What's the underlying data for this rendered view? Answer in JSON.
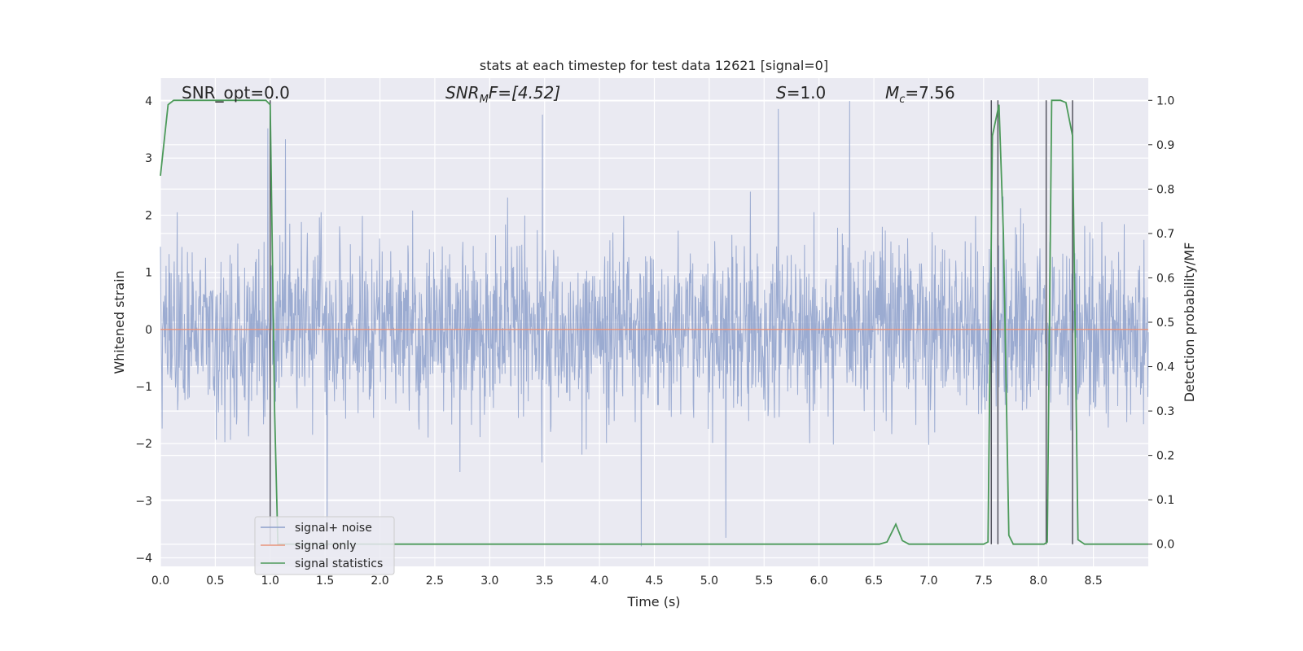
{
  "chart_data": {
    "type": "line",
    "title": "stats at each timestep for test data 12621 [signal=0]",
    "xlabel": "Time (s)",
    "ylabel": "Whitened strain",
    "y2label": "Detection probability/MF",
    "xlim": [
      0,
      9
    ],
    "ylim": [
      -4.15,
      4.4
    ],
    "y2lim": [
      -0.05,
      1.05
    ],
    "xticks": [
      "0.0",
      "0.5",
      "1.0",
      "1.5",
      "2.0",
      "2.5",
      "3.0",
      "3.5",
      "4.0",
      "4.5",
      "5.0",
      "5.5",
      "6.0",
      "6.5",
      "7.0",
      "7.5",
      "8.0",
      "8.5"
    ],
    "yticks": [
      "4",
      "3",
      "2",
      "1",
      "0",
      "−1",
      "−2",
      "−3",
      "−4"
    ],
    "y2ticks": [
      "1.0",
      "0.9",
      "0.8",
      "0.7",
      "0.6",
      "0.5",
      "0.4",
      "0.3",
      "0.2",
      "0.1",
      "0.0"
    ],
    "grid": true,
    "legend_position": "lower-left",
    "annotations": {
      "snr_opt": "SNR_opt=0.0",
      "snr_mf_prefix": "SNR",
      "snr_mf_sub": "M",
      "snr_mf_suffix": "F=[4.52]",
      "s_prefix": "S",
      "s_suffix": "=1.0",
      "mc_prefix": "M",
      "mc_sub": "c",
      "mc_suffix": "=7.56"
    },
    "series": [
      {
        "name": "signal+ noise",
        "color": "#8da0cb",
        "noise_std": 0.75,
        "noise_max": 4.0,
        "noise_min": -3.8,
        "notable_peaks": [
          [
            0.98,
            3.52
          ],
          [
            1.14,
            3.33
          ],
          [
            3.48,
            3.76
          ],
          [
            5.63,
            3.86
          ],
          [
            6.28,
            4.0
          ],
          [
            4.38,
            -3.8
          ],
          [
            5.15,
            -3.65
          ],
          [
            1.52,
            -3.55
          ]
        ]
      },
      {
        "name": "signal only",
        "color": "#e8937a",
        "values": [
          [
            0,
            0
          ],
          [
            9,
            0
          ]
        ]
      },
      {
        "name": "signal statistics",
        "color": "#4c9a5a",
        "axis": "right",
        "values": [
          [
            0,
            0.83
          ],
          [
            0.07,
            0.99
          ],
          [
            0.12,
            1.0
          ],
          [
            0.5,
            1.0
          ],
          [
            0.96,
            1.0
          ],
          [
            1.0,
            0.99
          ],
          [
            1.04,
            0.3
          ],
          [
            1.07,
            0.0
          ],
          [
            6.55,
            0.0
          ],
          [
            6.62,
            0.005
          ],
          [
            6.7,
            0.045
          ],
          [
            6.76,
            0.008
          ],
          [
            6.82,
            0.0
          ],
          [
            7.5,
            0.0
          ],
          [
            7.54,
            0.005
          ],
          [
            7.58,
            0.92
          ],
          [
            7.64,
            0.99
          ],
          [
            7.68,
            0.7
          ],
          [
            7.73,
            0.02
          ],
          [
            7.77,
            0.0
          ],
          [
            8.05,
            0.0
          ],
          [
            8.08,
            0.005
          ],
          [
            8.12,
            1.0
          ],
          [
            8.2,
            1.0
          ],
          [
            8.25,
            0.995
          ],
          [
            8.31,
            0.92
          ],
          [
            8.36,
            0.01
          ],
          [
            8.42,
            0.0
          ],
          [
            9,
            0.0
          ]
        ]
      }
    ],
    "vertical_lines": [
      [
        1.0,
        0.0,
        1.0
      ],
      [
        7.57,
        0.0,
        1.0
      ],
      [
        7.63,
        0.0,
        1.0
      ],
      [
        8.07,
        0.0,
        1.0
      ],
      [
        8.31,
        0.0,
        1.0
      ]
    ]
  }
}
